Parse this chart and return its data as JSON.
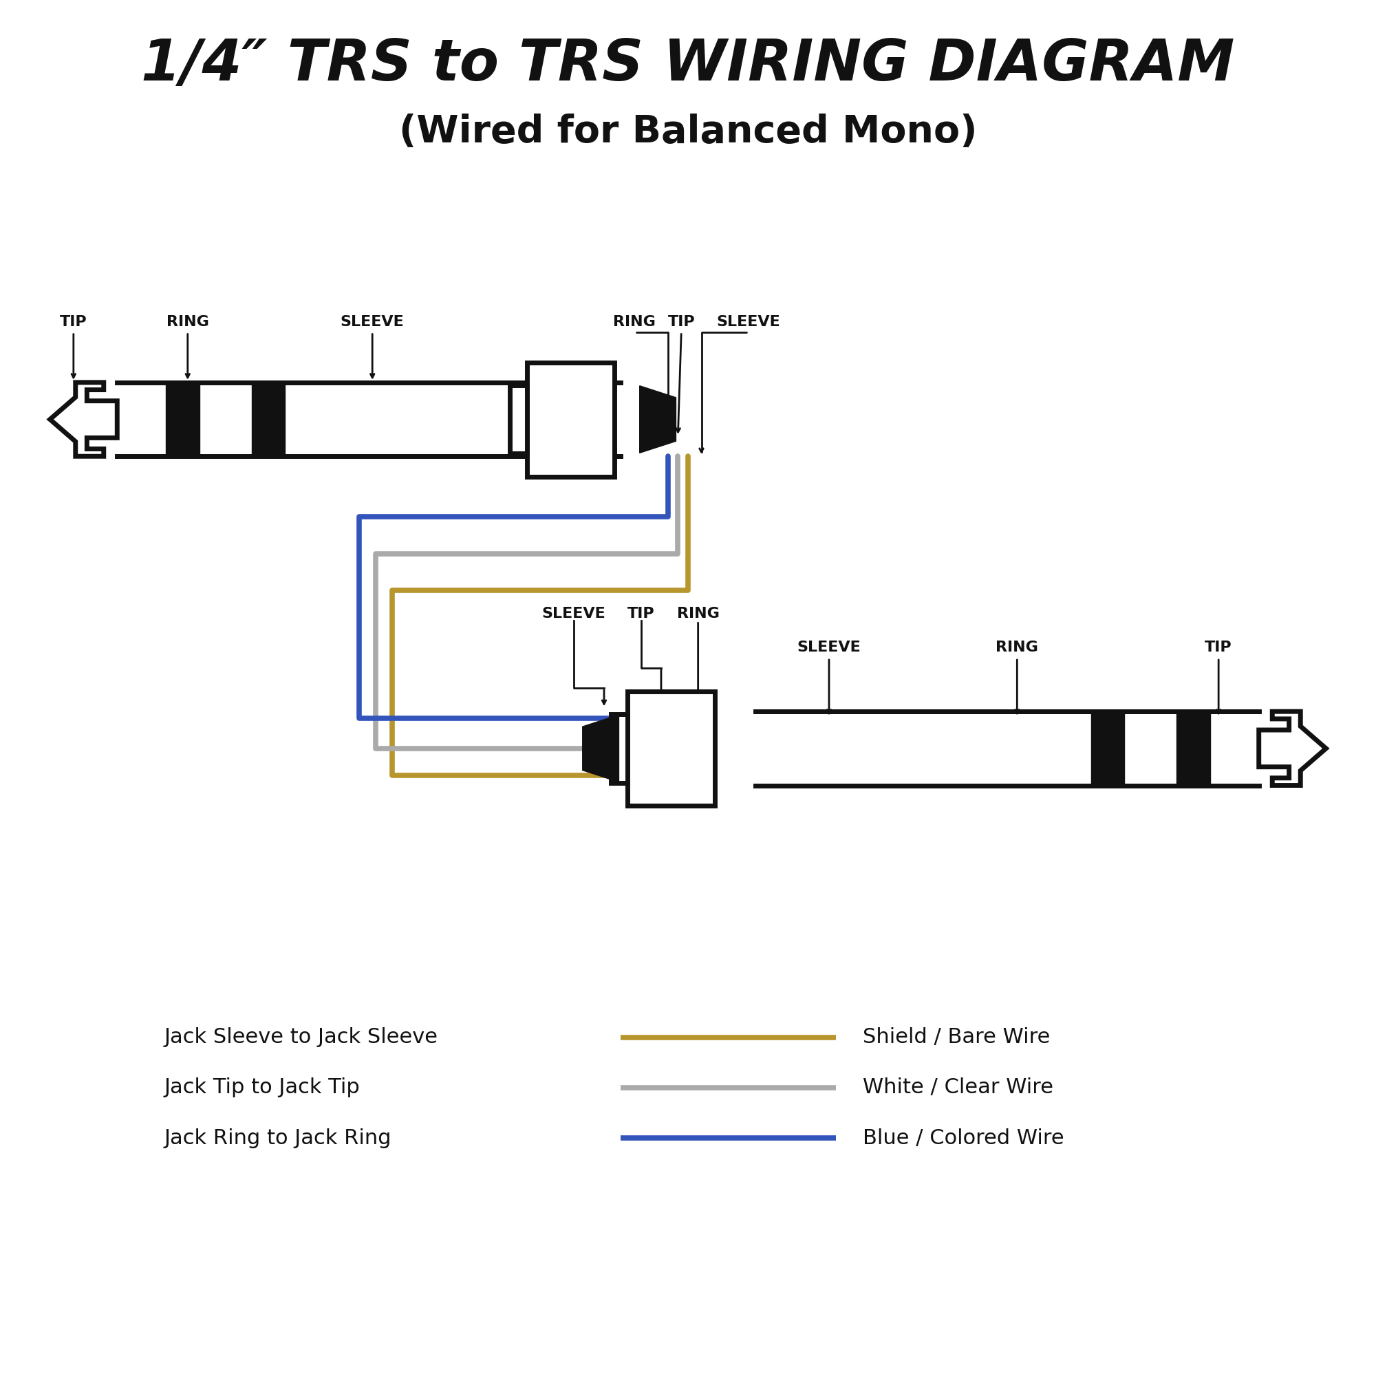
{
  "title_line1": "1/4″ TRS to TRS WIRING DIAGRAM",
  "title_line2": "(Wired for Balanced Mono)",
  "bg_color": "#ffffff",
  "text_color": "#111111",
  "wire_gold": "#b8962e",
  "wire_gray": "#aaaaaa",
  "wire_blue": "#3355bb",
  "lw_wire": 5.5,
  "lw_plug": 5.0,
  "legend": [
    {
      "label": "Jack Sleeve to Jack Sleeve",
      "wire": "Shield / Bare Wire",
      "color": "#b8962e"
    },
    {
      "label": "Jack Tip to Jack Tip",
      "wire": "White / Clear Wire",
      "color": "#aaaaaa"
    },
    {
      "label": "Jack Ring to Jack Ring",
      "wire": "Blue / Colored Wire",
      "color": "#3355bb"
    }
  ]
}
